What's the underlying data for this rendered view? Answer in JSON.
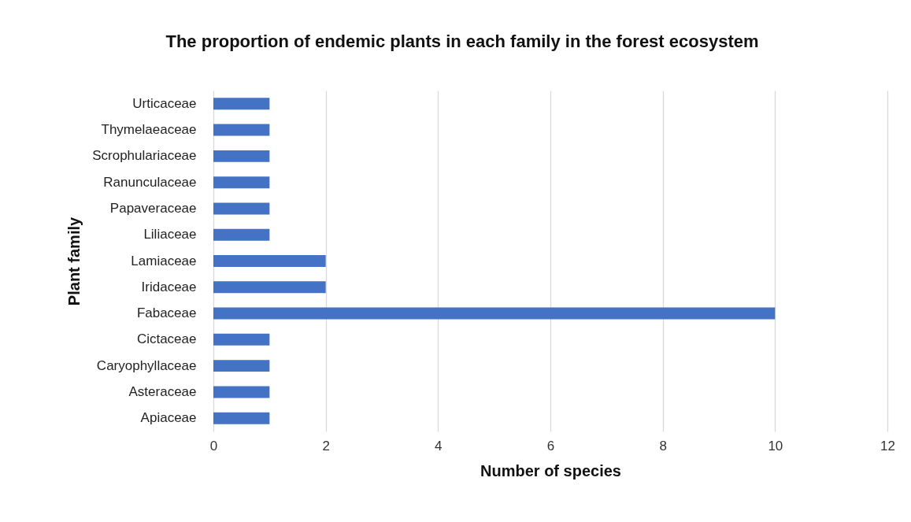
{
  "chart_data": {
    "type": "bar",
    "orientation": "horizontal",
    "title": "The proportion of endemic plants in each family in the forest ecosystem",
    "xlabel": "Number of species",
    "ylabel": "Plant family",
    "categories": [
      "Urticaceae",
      "Thymelaeaceae",
      "Scrophulariaceae",
      "Ranunculaceae",
      "Papaveraceae",
      "Liliaceae",
      "Lamiaceae",
      "Iridaceae",
      "Fabaceae",
      "Cictaceae",
      "Caryophyllaceae",
      "Asteraceae",
      "Apiaceae"
    ],
    "values": [
      1,
      1,
      1,
      1,
      1,
      1,
      2,
      2,
      10,
      1,
      1,
      1,
      1
    ],
    "color": "#4472c4",
    "xlim": [
      0,
      12
    ],
    "xticks": [
      0,
      2,
      4,
      6,
      8,
      10,
      12
    ],
    "grid": "x"
  }
}
